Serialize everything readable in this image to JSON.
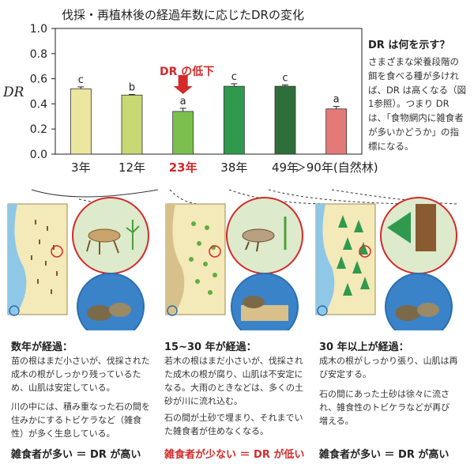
{
  "chart_data": {
    "type": "bar",
    "title": "伐採・再植林後の経過年数に応じたDRの変化",
    "ylabel": "DR",
    "ylim": [
      0,
      1.0
    ],
    "yticks": [
      "1.0",
      "0.8",
      "0.6",
      "0.4",
      "0.2",
      "0.0"
    ],
    "categories": [
      "3年",
      "12年",
      "23年",
      "38年",
      "49年",
      "＞90年(自然林)"
    ],
    "values": [
      0.52,
      0.47,
      0.34,
      0.54,
      0.54,
      0.36
    ],
    "errors": [
      0.015,
      0.005,
      0.025,
      0.02,
      0.01,
      0.02
    ],
    "significance": [
      "c",
      "b",
      "a",
      "c",
      "c",
      "a"
    ],
    "colors": [
      "#ede6a0",
      "#c7d875",
      "#7dbf4e",
      "#2f9a4e",
      "#2e6e3a",
      "#e47a78"
    ],
    "highlight_index": 2,
    "annotation": "DR の低下",
    "grid": false,
    "legend": "none"
  },
  "side": {
    "heading": "DR は何を示す？",
    "text": "さまざまな栄養段階の餌を食べる種が多ければ、DR は高くなる（図1参照）。つまり DR は、「食物網内に雑食者が多いかどうか」の指標になる。"
  },
  "stages": [
    {
      "title": "数年が経過：",
      "p1": "苗の根はまだ小さいが、伐採された成木の根がしっかり残っているため、山肌は安定している。",
      "p2": "川の中には、積み重なった石の間を住みかにするトビケラなど（雑食性）が多く生息している。",
      "footer": "雑食者が多い ＝ DR が高い"
    },
    {
      "title": "15~30 年が経過：",
      "p1": "若木の根はまだ小さいが、伐採された成木の根が腐り、山肌は不安定になる。大雨のときなどは、多くの土砂が川に流れ込む。",
      "p2": "石の間が土砂で埋まり、それまでいた雑食者が住めなくなる。",
      "footer": "雑食者が少ない ＝ DR が低い"
    },
    {
      "title": "30 年以上が経過：",
      "p1": "成木の根がしっかり張り、山肌は再び安定する。",
      "p2": "石の間にあった土砂は徐々に流され、雑食性のトビケラなどが再び増える。",
      "footer": "雑食者が多い ＝ DR が高い"
    }
  ],
  "icons": [
    "down-arrow-icon",
    "forest-scene-icon",
    "tree-stump-icon",
    "river-stones-icon"
  ]
}
